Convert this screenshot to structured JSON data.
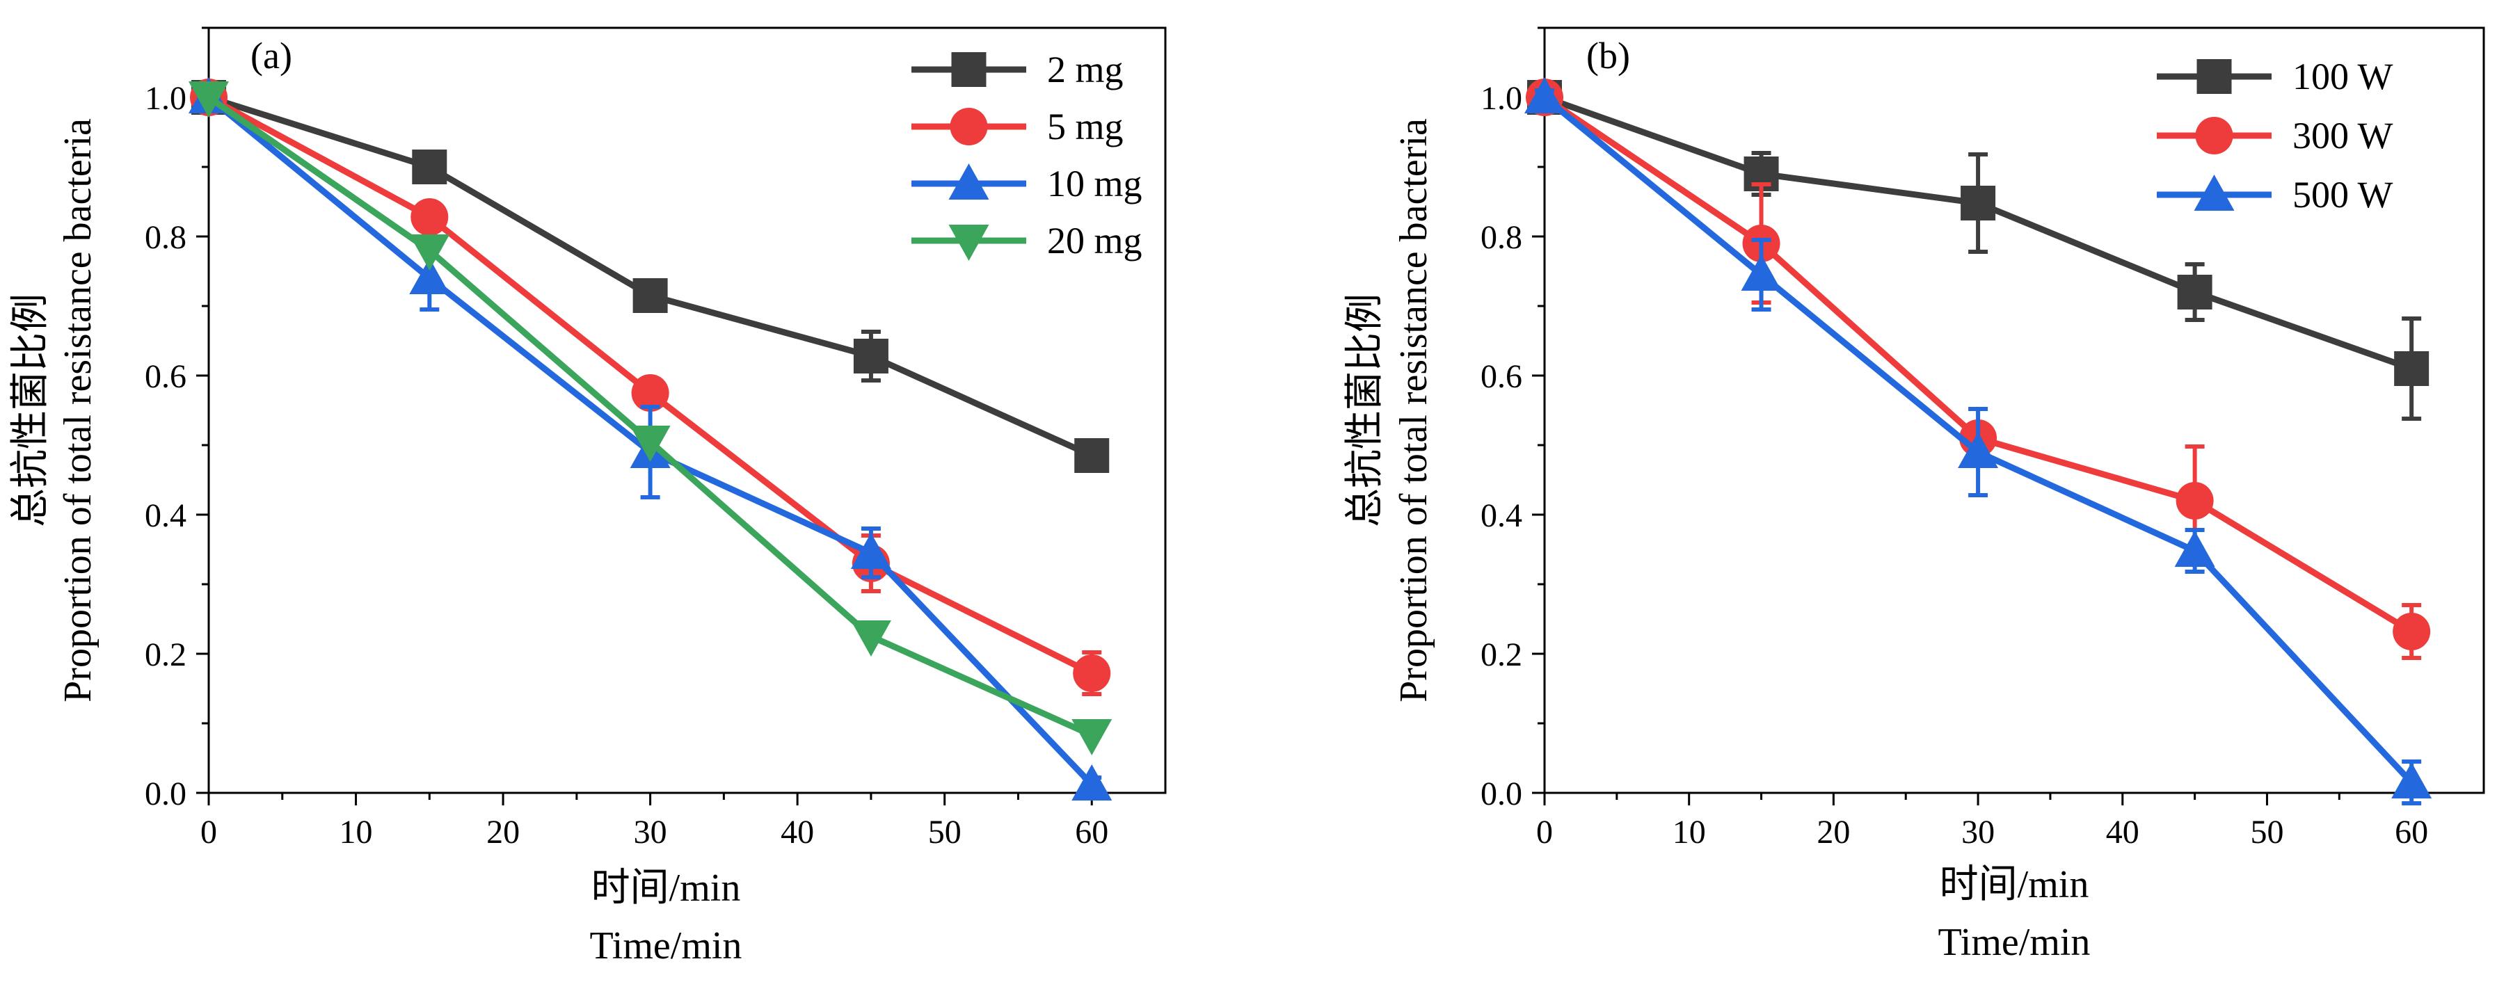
{
  "chart_data": [
    {
      "type": "line",
      "panel_label": "(a)",
      "xlabel_cn": "时间/min",
      "xlabel_en": "Time/min",
      "ylabel_cn": "总抗性菌比例",
      "ylabel_en": "Proportion of total resistance bacteria",
      "xlim": [
        0,
        65
      ],
      "ylim": [
        0,
        1.1
      ],
      "xticks": [
        0,
        10,
        20,
        30,
        40,
        50,
        60
      ],
      "yticks": [
        0.0,
        0.2,
        0.4,
        0.6,
        0.8,
        1.0
      ],
      "xtick_labels": [
        "0",
        "10",
        "20",
        "30",
        "40",
        "50",
        "60"
      ],
      "ytick_labels": [
        "0.0",
        "0.2",
        "0.4",
        "0.6",
        "0.8",
        "1.0"
      ],
      "grid": false,
      "legend_position": "top-right",
      "series": [
        {
          "name": "2 mg",
          "color": "#3d3d3d",
          "marker": "square",
          "x": [
            0,
            15,
            30,
            45,
            60
          ],
          "y": [
            1.0,
            0.9,
            0.715,
            0.628,
            0.485
          ],
          "err": [
            0.01,
            0.012,
            0.012,
            0.035,
            0.015
          ]
        },
        {
          "name": "5 mg",
          "color": "#ee3b3b",
          "marker": "circle",
          "x": [
            0,
            15,
            30,
            45,
            60
          ],
          "y": [
            1.0,
            0.828,
            0.575,
            0.33,
            0.172
          ],
          "err": [
            0.01,
            0.015,
            0.012,
            0.04,
            0.03
          ]
        },
        {
          "name": "10 mg",
          "color": "#2369dd",
          "marker": "triangle-up",
          "x": [
            0,
            15,
            30,
            45,
            60
          ],
          "y": [
            1.0,
            0.74,
            0.49,
            0.345,
            0.012
          ],
          "err": [
            0.01,
            0.045,
            0.065,
            0.035,
            0.01
          ]
        },
        {
          "name": "20 mg",
          "color": "#3ba55c",
          "marker": "triangle-down",
          "x": [
            0,
            15,
            30,
            45,
            60
          ],
          "y": [
            1.0,
            0.78,
            0.505,
            0.225,
            0.083
          ],
          "err": [
            0.0,
            0.0,
            0.0,
            0.0,
            0.0
          ]
        }
      ]
    },
    {
      "type": "line",
      "panel_label": "(b)",
      "xlabel_cn": "时间/min",
      "xlabel_en": "Time/min",
      "ylabel_cn": "总抗性菌比例",
      "ylabel_en": "Proportion of total resistance bacteria",
      "xlim": [
        0,
        65
      ],
      "ylim": [
        0,
        1.1
      ],
      "xticks": [
        0,
        10,
        20,
        30,
        40,
        50,
        60
      ],
      "yticks": [
        0.0,
        0.2,
        0.4,
        0.6,
        0.8,
        1.0
      ],
      "xtick_labels": [
        "0",
        "10",
        "20",
        "30",
        "40",
        "50",
        "60"
      ],
      "ytick_labels": [
        "0.0",
        "0.2",
        "0.4",
        "0.6",
        "0.8",
        "1.0"
      ],
      "grid": false,
      "legend_position": "top-right",
      "series": [
        {
          "name": "100 W",
          "color": "#3d3d3d",
          "marker": "square",
          "x": [
            0,
            15,
            30,
            45,
            60
          ],
          "y": [
            1.0,
            0.89,
            0.848,
            0.72,
            0.61
          ],
          "err": [
            0.01,
            0.03,
            0.07,
            0.04,
            0.072
          ]
        },
        {
          "name": "300 W",
          "color": "#ee3b3b",
          "marker": "circle",
          "x": [
            0,
            15,
            30,
            45,
            60
          ],
          "y": [
            1.0,
            0.79,
            0.51,
            0.42,
            0.232
          ],
          "err": [
            0.01,
            0.085,
            0.02,
            0.078,
            0.038
          ]
        },
        {
          "name": "500 W",
          "color": "#2369dd",
          "marker": "triangle-up",
          "x": [
            0,
            15,
            30,
            45,
            60
          ],
          "y": [
            1.0,
            0.745,
            0.49,
            0.348,
            0.015
          ],
          "err": [
            0.01,
            0.05,
            0.062,
            0.03,
            0.03
          ]
        }
      ]
    }
  ]
}
